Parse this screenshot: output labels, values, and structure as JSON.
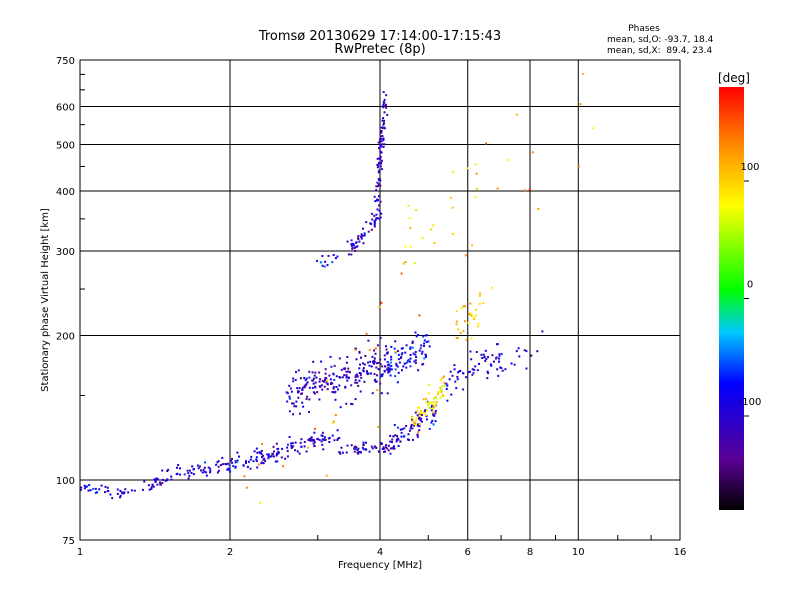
{
  "chart_data": {
    "type": "scatter",
    "title": "Tromsø 20130629 17:14:00-17:15:43",
    "subtitle": "RwPretec (8p)",
    "xlabel": "Frequency [MHz]",
    "ylabel": "Stationary phase Virtual Height [km]",
    "x_scale": "log",
    "y_scale": "log",
    "xlim": [
      1,
      16
    ],
    "ylim": [
      75,
      750
    ],
    "x_ticks": [
      1,
      2,
      4,
      6,
      8,
      10,
      16
    ],
    "x_tick_labels": [
      "1",
      "2",
      "4",
      "6",
      "8",
      "10",
      "16"
    ],
    "y_ticks": [
      75,
      100,
      200,
      300,
      400,
      500,
      600,
      750
    ],
    "y_tick_labels": [
      "75",
      "100",
      "200",
      "300",
      "400",
      "500",
      "600",
      "750"
    ],
    "grid": true,
    "stats": {
      "header": "Phases",
      "line_o": "mean, sd,O: -93.7, 18.4",
      "line_x": "mean, sd,X:  89.4, 23.4"
    },
    "colorbar": {
      "label": "[deg]",
      "range": [
        -180,
        180
      ],
      "ticks": [
        100,
        0,
        -100
      ],
      "tick_labels": [
        "100",
        "0",
        "-100"
      ]
    },
    "clusters": [
      {
        "f0": 1.0,
        "f1": 1.15,
        "h0": 96,
        "h1": 95,
        "n": 20,
        "sd": 0.01,
        "ph": -95
      },
      {
        "f0": 1.15,
        "f1": 1.4,
        "h0": 93,
        "h1": 97,
        "n": 25,
        "sd": 0.015,
        "ph": -95
      },
      {
        "f0": 1.4,
        "f1": 2.0,
        "h0": 100,
        "h1": 108,
        "n": 70,
        "sd": 0.02,
        "ph": -100
      },
      {
        "f0": 2.0,
        "f1": 2.6,
        "h0": 108,
        "h1": 115,
        "n": 70,
        "sd": 0.02,
        "ph": -95
      },
      {
        "f0": 2.6,
        "f1": 3.3,
        "h0": 118,
        "h1": 122,
        "n": 60,
        "sd": 0.02,
        "ph": -105
      },
      {
        "f0": 3.3,
        "f1": 4.2,
        "h0": 115,
        "h1": 117,
        "n": 50,
        "sd": 0.012,
        "ph": -110
      },
      {
        "f0": 2.6,
        "f1": 4.2,
        "h0": 150,
        "h1": 175,
        "n": 220,
        "sd": 0.05,
        "ph": -110
      },
      {
        "f0": 3.5,
        "f1": 4.0,
        "h0": 300,
        "h1": 360,
        "n": 50,
        "sd": 0.02,
        "ph": -100
      },
      {
        "f0": 3.0,
        "f1": 3.5,
        "h0": 280,
        "h1": 310,
        "n": 15,
        "sd": 0.02,
        "ph": -80
      },
      {
        "f0": 3.95,
        "f1": 4.1,
        "h0": 380,
        "h1": 640,
        "n": 80,
        "sd": 0.02,
        "ph": -105
      },
      {
        "f0": 4.0,
        "f1": 5.0,
        "h0": 170,
        "h1": 190,
        "n": 90,
        "sd": 0.04,
        "ph": -90
      },
      {
        "f0": 4.2,
        "f1": 5.2,
        "h0": 120,
        "h1": 140,
        "n": 80,
        "sd": 0.04,
        "ph": -100
      },
      {
        "f0": 4.6,
        "f1": 5.4,
        "h0": 130,
        "h1": 155,
        "n": 60,
        "sd": 0.03,
        "ph": 90
      },
      {
        "f0": 5.4,
        "f1": 7.0,
        "h0": 160,
        "h1": 180,
        "n": 60,
        "sd": 0.035,
        "ph": -100
      },
      {
        "f0": 5.6,
        "f1": 6.5,
        "h0": 200,
        "h1": 240,
        "n": 30,
        "sd": 0.05,
        "ph": 100
      },
      {
        "f0": 4.5,
        "f1": 6.5,
        "h0": 320,
        "h1": 420,
        "n": 20,
        "sd": 0.08,
        "ph": 90
      },
      {
        "f0": 6.8,
        "f1": 8.5,
        "h0": 175,
        "h1": 190,
        "n": 15,
        "sd": 0.03,
        "ph": -100
      },
      {
        "f0": 2.0,
        "f1": 11.0,
        "h0": 80,
        "h1": 700,
        "n": 45,
        "sd": 0.2,
        "ph": 120
      }
    ]
  }
}
